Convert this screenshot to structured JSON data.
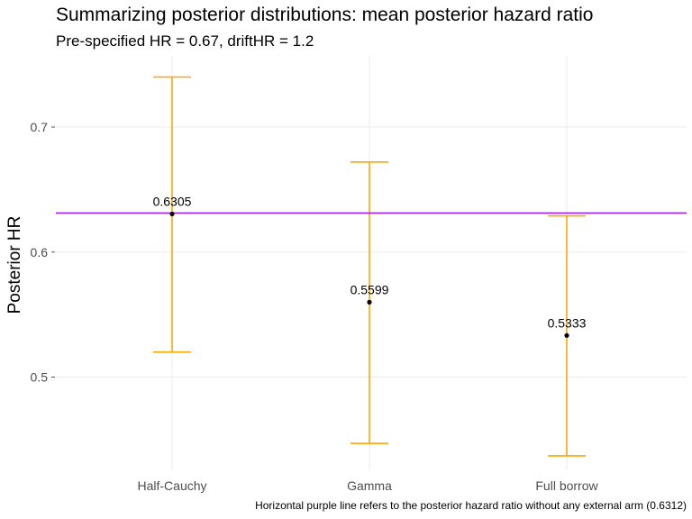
{
  "chart_data": {
    "type": "errorbar",
    "title": "Summarizing posterior distributions: mean posterior hazard ratio",
    "subtitle": "Pre-specified HR = 0.67, driftHR = 1.2",
    "xlabel": "",
    "ylabel": "Posterior HR",
    "caption": "Horizontal purple line refers to the posterior hazard ratio without any external arm (0.6312)",
    "categories": [
      "Half-Cauchy",
      "Gamma",
      "Full borrow"
    ],
    "mean": [
      0.6305,
      0.5599,
      0.5333
    ],
    "lower": [
      0.52,
      0.447,
      0.437
    ],
    "upper": [
      0.74,
      0.672,
      0.629
    ],
    "point_labels": [
      "0.6305",
      "0.5599",
      "0.5333"
    ],
    "reference_line": 0.6312,
    "yticks": [
      0.5,
      0.6,
      0.7
    ],
    "ytick_labels": [
      "0.5",
      "0.6",
      "0.7"
    ],
    "ylim": [
      0.43,
      0.75
    ],
    "grid": true,
    "colors": {
      "errorbar": "#FFA500",
      "reference_line": "#A020F0",
      "point": "#000000",
      "grid": "#EBEBEB"
    }
  }
}
